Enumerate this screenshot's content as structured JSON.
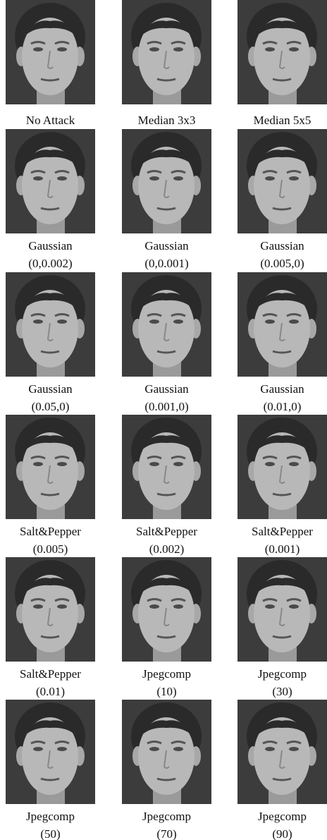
{
  "rows": [
    [
      [
        "No Attack"
      ],
      [
        "Median 3x3"
      ],
      [
        "Median 5x5"
      ]
    ],
    [
      [
        "Gaussian",
        "(0,0.002)"
      ],
      [
        "Gaussian",
        "(0,0.001)"
      ],
      [
        "Gaussian",
        "(0.005,0)"
      ]
    ],
    [
      [
        "Gaussian",
        "(0.05,0)"
      ],
      [
        "Gaussian",
        "(0.001,0)"
      ],
      [
        "Gaussian",
        "(0.01,0)"
      ]
    ],
    [
      [
        "Salt&Pepper",
        "(0.005)"
      ],
      [
        "Salt&Pepper",
        "(0.002)"
      ],
      [
        "Salt&Pepper",
        "(0.001)"
      ]
    ],
    [
      [
        "Salt&Pepper",
        "(0.01)"
      ],
      [
        "Jpegcomp",
        "(10)"
      ],
      [
        "Jpegcomp",
        "(30)"
      ]
    ],
    [
      [
        "Jpegcomp",
        "(50)"
      ],
      [
        "Jpegcomp",
        "(70)"
      ],
      [
        "Jpegcomp",
        "(90)"
      ]
    ]
  ]
}
